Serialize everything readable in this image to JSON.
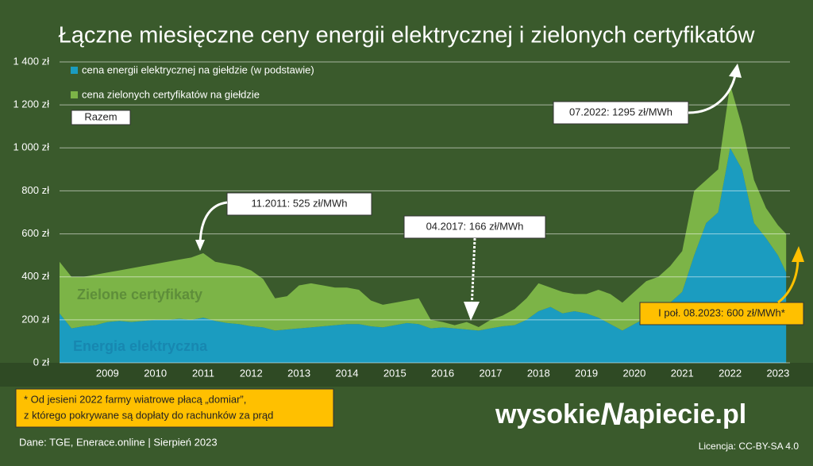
{
  "chart_data": {
    "type": "stacked-area",
    "title": "Łączne miesięczne ceny energii elektrycznej i zielonych certyfikatów",
    "x": [
      2008.5,
      2008.75,
      2009,
      2009.25,
      2009.5,
      2009.75,
      2010,
      2010.25,
      2010.5,
      2010.75,
      2011,
      2011.25,
      2011.5,
      2011.75,
      2012,
      2012.25,
      2012.5,
      2012.75,
      2013,
      2013.25,
      2013.5,
      2013.75,
      2014,
      2014.25,
      2014.5,
      2014.75,
      2015,
      2015.25,
      2015.5,
      2015.75,
      2016,
      2016.25,
      2016.5,
      2016.75,
      2017,
      2017.25,
      2017.5,
      2017.75,
      2018,
      2018.25,
      2018.5,
      2018.75,
      2019,
      2019.25,
      2019.5,
      2019.75,
      2020,
      2020.25,
      2020.5,
      2020.75,
      2021,
      2021.25,
      2021.5,
      2021.75,
      2022,
      2022.25,
      2022.5,
      2022.75,
      2023,
      2023.25,
      2023.5,
      2023.67
    ],
    "xlim": [
      2008.5,
      2023.75
    ],
    "xticks": [
      {
        "value": 2009,
        "label": "2009"
      },
      {
        "value": 2010,
        "label": "2010"
      },
      {
        "value": 2011,
        "label": "2011"
      },
      {
        "value": 2012,
        "label": "2012"
      },
      {
        "value": 2013,
        "label": "2013"
      },
      {
        "value": 2014,
        "label": "2014"
      },
      {
        "value": 2015,
        "label": "2015"
      },
      {
        "value": 2016,
        "label": "2016"
      },
      {
        "value": 2017,
        "label": "2017"
      },
      {
        "value": 2018,
        "label": "2018"
      },
      {
        "value": 2019,
        "label": "2019"
      },
      {
        "value": 2020,
        "label": "2020"
      },
      {
        "value": 2021,
        "label": "2021"
      },
      {
        "value": 2022,
        "label": "2022"
      },
      {
        "value": 2023,
        "label": "2023"
      }
    ],
    "ylim": [
      0,
      1400
    ],
    "yticks": [
      {
        "value": 0,
        "label": "0 zł"
      },
      {
        "value": 200,
        "label": "200 zł"
      },
      {
        "value": 400,
        "label": "400 zł"
      },
      {
        "value": 600,
        "label": "600 zł"
      },
      {
        "value": 800,
        "label": "800 zł"
      },
      {
        "value": 1000,
        "label": "1 000 zł"
      },
      {
        "value": 1200,
        "label": "1 200 zł"
      },
      {
        "value": 1400,
        "label": "1 400 zł"
      }
    ],
    "grid": true,
    "series": [
      {
        "name": "cena energii elektrycznej na giełdzie (w podstawie)",
        "color": "#1b9cc0",
        "values": [
          230,
          160,
          170,
          175,
          190,
          195,
          190,
          195,
          200,
          200,
          205,
          200,
          210,
          195,
          185,
          180,
          170,
          165,
          150,
          155,
          160,
          165,
          170,
          175,
          180,
          180,
          170,
          165,
          175,
          185,
          180,
          160,
          165,
          160,
          155,
          150,
          160,
          170,
          175,
          200,
          240,
          260,
          230,
          240,
          230,
          210,
          180,
          150,
          180,
          210,
          230,
          280,
          330,
          500,
          650,
          700,
          1000,
          900,
          650,
          580,
          500,
          420
        ]
      },
      {
        "name": "cena zielonych certyfikatów na giełdzie",
        "color": "#7cb447",
        "values": [
          240,
          240,
          230,
          235,
          230,
          235,
          250,
          255,
          260,
          270,
          275,
          290,
          300,
          275,
          275,
          270,
          260,
          225,
          150,
          155,
          200,
          205,
          190,
          175,
          170,
          160,
          120,
          105,
          105,
          105,
          120,
          40,
          25,
          15,
          35,
          16,
          40,
          50,
          75,
          100,
          130,
          90,
          100,
          80,
          90,
          130,
          140,
          130,
          150,
          170,
          170,
          170,
          190,
          300,
          200,
          200,
          295,
          200,
          200,
          140,
          140,
          180
        ]
      }
    ],
    "total_legend": "Razem",
    "area_labels": [
      "Zielone certyfikaty",
      "Energia elektryczna"
    ],
    "annotations": [
      "11.2011: 525 zł/MWh",
      "04.2017: 166 zł/MWh",
      "07.2022: 1295 zł/MWh",
      "I poł. 08.2023: 600 zł/MWh*"
    ]
  },
  "footnote": [
    "* Od jesieni 2022 farmy wiatrowe płacą „domiar”,",
    "z którego pokrywane są dopłaty do rachunków za prąd"
  ],
  "source": "Dane: TGE, Enerace.online  |  Sierpień 2023",
  "license": "Licencja: CC-BY-SA 4.0",
  "logo": [
    "wysokie",
    "N",
    "apiecie.pl"
  ]
}
